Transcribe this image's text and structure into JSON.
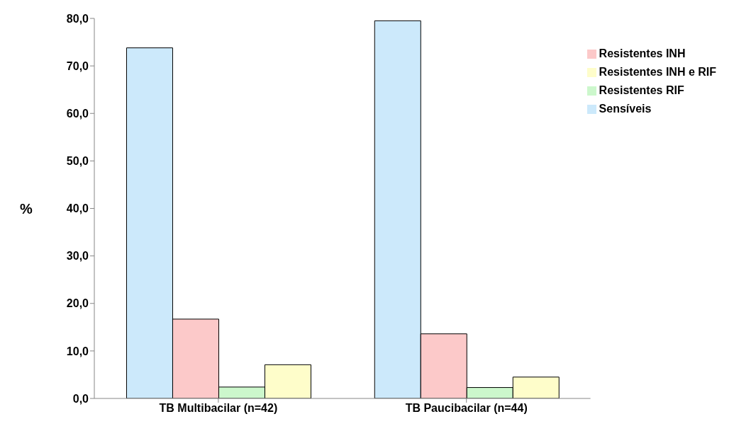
{
  "chart_data": {
    "type": "bar",
    "ylabel": "%",
    "categories": [
      "TB Multibacilar (n=42)",
      "TB Paucibacilar (n=44)"
    ],
    "series": [
      {
        "name": "Sensíveis",
        "color": "#cce9fb",
        "values": [
          73.8,
          79.5
        ]
      },
      {
        "name": "Resistentes INH",
        "color": "#fcc9c9",
        "values": [
          16.7,
          13.6
        ]
      },
      {
        "name": "Resistentes RIF",
        "color": "#ccf7cc",
        "values": [
          2.4,
          2.3
        ]
      },
      {
        "name": "Resistentes INH e RIF",
        "color": "#fefdca",
        "values": [
          7.1,
          4.5
        ]
      }
    ],
    "ylim": [
      0,
      80
    ],
    "yticks": [
      {
        "value": 0,
        "label": "0,0"
      },
      {
        "value": 10,
        "label": "10,0"
      },
      {
        "value": 20,
        "label": "20,0"
      },
      {
        "value": 30,
        "label": "30,0"
      },
      {
        "value": 40,
        "label": "40,0"
      },
      {
        "value": 50,
        "label": "50,0"
      },
      {
        "value": 60,
        "label": "60,0"
      },
      {
        "value": 70,
        "label": "70,0"
      },
      {
        "value": 80,
        "label": "80,0"
      }
    ],
    "grid": false,
    "legend": "top right"
  }
}
